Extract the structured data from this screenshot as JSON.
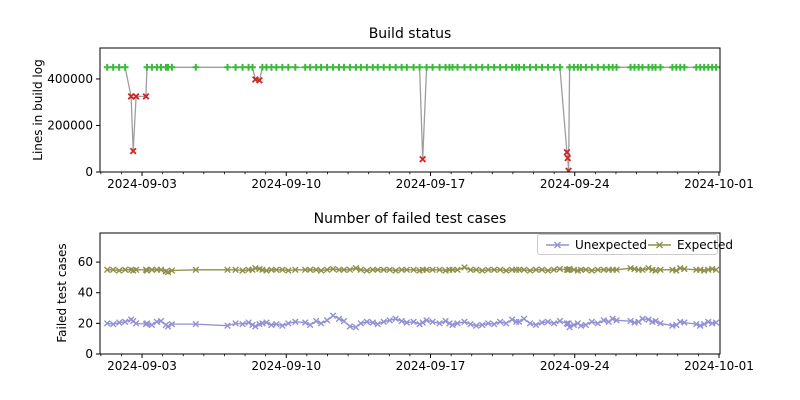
{
  "figure": {
    "background": "#ffffff",
    "text_color": "#000000",
    "spine_color": "#000000",
    "grid": "off"
  },
  "chart_data": {
    "x_unit": "date",
    "x_days": [
      1.31,
      1.6,
      1.89,
      2.18,
      2.47,
      2.57,
      2.71,
      3.19,
      3.24,
      3.48,
      3.72,
      3.92,
      4.16,
      4.26,
      4.45,
      5.61,
      7.15,
      7.54,
      7.88,
      8.17,
      8.36,
      8.5,
      8.7,
      8.84,
      9.04,
      9.28,
      9.52,
      9.81,
      10.1,
      10.44,
      10.92,
      11.16,
      11.45,
      11.69,
      11.98,
      12.27,
      12.56,
      12.8,
      13.09,
      13.38,
      13.62,
      13.91,
      14.2,
      14.44,
      14.73,
      15.02,
      15.31,
      15.6,
      15.85,
      16.18,
      16.47,
      16.62,
      16.81,
      17.1,
      17.44,
      17.73,
      17.92,
      18.07,
      18.31,
      18.65,
      18.94,
      19.22,
      19.51,
      19.8,
      20.09,
      20.38,
      20.67,
      20.96,
      21.16,
      21.3,
      21.54,
      21.83,
      22.12,
      22.41,
      22.7,
      22.99,
      23.28,
      23.62,
      23.66,
      23.7,
      23.75,
      23.96,
      24.15,
      24.3,
      24.54,
      24.83,
      25.12,
      25.41,
      25.65,
      25.84,
      26.03,
      26.71,
      26.9,
      27.1,
      27.29,
      27.58,
      27.77,
      27.92,
      28.16,
      28.74,
      28.93,
      29.12,
      29.32,
      29.9,
      30.09,
      30.28,
      30.48,
      30.67,
      30.86
    ],
    "charts": [
      {
        "name": "build-status",
        "type": "line",
        "title": "Build status",
        "ylabel": "Lines in build log",
        "xlim": [
          0.96,
          31.05
        ],
        "ylim": [
          0,
          533000
        ],
        "xticks": [
          {
            "day": 3,
            "label": "2024-09-03"
          },
          {
            "day": 10,
            "label": "2024-09-10"
          },
          {
            "day": 17,
            "label": "2024-09-17"
          },
          {
            "day": 24,
            "label": "2024-09-24"
          },
          {
            "day": 31,
            "label": "2024-10-01"
          }
        ],
        "x_minor_every_days": 1,
        "yticks": [
          {
            "v": 0,
            "label": "0"
          },
          {
            "v": 200000,
            "label": "200000"
          },
          {
            "v": 400000,
            "label": "400000"
          }
        ],
        "line_color": "#9e9e9e",
        "series": [
          {
            "name": "lines-in-build-log",
            "pass_color": "#3cb83c",
            "fail_color": "#cd2626",
            "pass_marker": "plus",
            "fail_marker": "x",
            "status": "PPPPFFFFPPPPPPPPPPPPPFFPPPPPPPPPPPPPPPPPPPPPPPPPPPPFPPPPPPPPPPPPPPPPPPPPPPPPPFFFPPPPPPPPPPPPPPPPPPPPPPPPPPPPP",
            "y": [
              450000,
              450000,
              450000,
              450000,
              325000,
              90000,
              325000,
              325000,
              450000,
              450000,
              450000,
              450000,
              450000,
              450000,
              450000,
              450000,
              450000,
              450000,
              450000,
              450000,
              450000,
              398000,
              394000,
              450000,
              450000,
              450000,
              450000,
              450000,
              450000,
              450000,
              450000,
              450000,
              450000,
              450000,
              450000,
              450000,
              450000,
              450000,
              450000,
              450000,
              450000,
              450000,
              450000,
              450000,
              450000,
              450000,
              450000,
              450000,
              450000,
              450000,
              450000,
              55000,
              450000,
              450000,
              450000,
              450000,
              450000,
              450000,
              450000,
              450000,
              450000,
              450000,
              450000,
              450000,
              450000,
              450000,
              450000,
              450000,
              450000,
              450000,
              450000,
              450000,
              450000,
              450000,
              450000,
              450000,
              450000,
              85000,
              60000,
              5000,
              450000,
              450000,
              450000,
              450000,
              450000,
              450000,
              450000,
              450000,
              450000,
              450000,
              450000,
              450000,
              450000,
              450000,
              450000,
              450000,
              450000,
              450000,
              450000,
              450000,
              450000,
              450000,
              450000,
              450000,
              450000,
              450000,
              450000,
              450000,
              450000
            ]
          }
        ]
      },
      {
        "name": "failed-test-cases",
        "type": "line",
        "title": "Number of failed test cases",
        "ylabel": "Failed test cases",
        "xlim": [
          0.96,
          31.05
        ],
        "ylim": [
          0,
          79
        ],
        "xticks": [
          {
            "day": 3,
            "label": "2024-09-03"
          },
          {
            "day": 10,
            "label": "2024-09-10"
          },
          {
            "day": 17,
            "label": "2024-09-17"
          },
          {
            "day": 24,
            "label": "2024-09-24"
          },
          {
            "day": 31,
            "label": "2024-10-01"
          }
        ],
        "x_minor_every_days": 1,
        "yticks": [
          {
            "v": 0,
            "label": "0"
          },
          {
            "v": 20,
            "label": "20"
          },
          {
            "v": 40,
            "label": "40"
          },
          {
            "v": 60,
            "label": "60"
          }
        ],
        "legend": {
          "position": "upper right"
        },
        "series": [
          {
            "name": "Unexpected",
            "color": "#9191d5",
            "marker": "x",
            "y": [
              20,
              19.5,
              20.5,
              21,
              22.5,
              21.5,
              20,
              19.5,
              20,
              19,
              21,
              21.5,
              19,
              18,
              19.5,
              19.5,
              18.5,
              20,
              19.5,
              20.5,
              19,
              18,
              19.5,
              20,
              20.5,
              19,
              19.5,
              18.5,
              20,
              21,
              20.5,
              19,
              21.5,
              20,
              22,
              25,
              23,
              21.5,
              18,
              17.5,
              20,
              21,
              20.5,
              19.5,
              21,
              22,
              23,
              21.5,
              20.5,
              21,
              19.5,
              20.5,
              22,
              21,
              20,
              21.5,
              20,
              19,
              20,
              21,
              19.5,
              18.5,
              19,
              20,
              19.5,
              21,
              20,
              22.5,
              21,
              21,
              23,
              20,
              19,
              20.5,
              21,
              20,
              21.5,
              20,
              19.5,
              20,
              17.5,
              19,
              20,
              18.5,
              19,
              21,
              20,
              22,
              21,
              23,
              22,
              21.5,
              20.5,
              21,
              23,
              22.5,
              21,
              21.5,
              20,
              18.5,
              19,
              21,
              20.5,
              19.5,
              18.5,
              19.5,
              21,
              20,
              20.5
            ]
          },
          {
            "name": "Expected",
            "color": "#8f8f4a",
            "marker": "x",
            "y": [
              55,
              55,
              54.5,
              55,
              55,
              54.5,
              55,
              55,
              54.5,
              55,
              55,
              55,
              54,
              53.5,
              54.5,
              55,
              55,
              55,
              54.5,
              55,
              55,
              56,
              55.5,
              55,
              54.5,
              55,
              55,
              55,
              54.5,
              55,
              55,
              55,
              55,
              54.5,
              55,
              55.5,
              55,
              55,
              55,
              56,
              55,
              54.5,
              55,
              55,
              55,
              55,
              54.5,
              55,
              55,
              55,
              54.5,
              55,
              55,
              55,
              55,
              54.5,
              55,
              55,
              55,
              56.5,
              55,
              55,
              54.5,
              55,
              55,
              55,
              54.5,
              55,
              55,
              55,
              55,
              54.5,
              55,
              55,
              54.5,
              55,
              55.5,
              55,
              55,
              55,
              55.5,
              55,
              54.5,
              55,
              55,
              54.5,
              55,
              55,
              55,
              55,
              55,
              56,
              55.5,
              55,
              55,
              56,
              55,
              54.5,
              55,
              55,
              54.5,
              56,
              55.5,
              55,
              55,
              54.5,
              55,
              55.5,
              55
            ]
          }
        ]
      }
    ]
  }
}
